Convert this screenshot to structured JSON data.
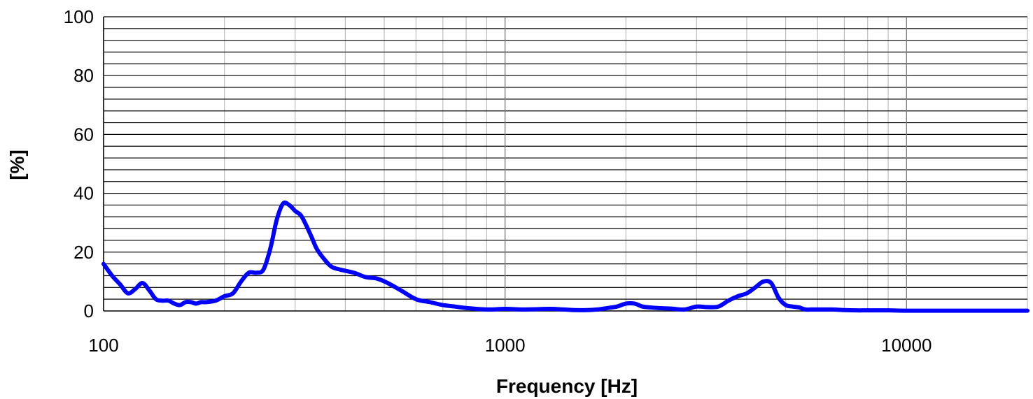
{
  "chart_data": {
    "type": "line",
    "xlabel": "Frequency [Hz]",
    "ylabel": "[%]",
    "xscale": "log",
    "xlim": [
      100,
      20000
    ],
    "ylim": [
      0,
      100
    ],
    "x_ticks": [
      100,
      1000,
      10000
    ],
    "x_tick_labels": [
      "100",
      "1000",
      "10000"
    ],
    "y_ticks": [
      0,
      20,
      40,
      60,
      80,
      100
    ],
    "y_tick_labels": [
      "0",
      "20",
      "40",
      "60",
      "80",
      "100"
    ],
    "y_minor_step": 4,
    "grid": true,
    "legend": "none",
    "series": [
      {
        "color": "#0000ff",
        "x": [
          100,
          105,
          110,
          115,
          120,
          125,
          130,
          135,
          140,
          145,
          150,
          155,
          160,
          165,
          170,
          175,
          180,
          190,
          200,
          210,
          220,
          230,
          240,
          250,
          260,
          270,
          280,
          290,
          300,
          310,
          320,
          330,
          340,
          355,
          370,
          390,
          420,
          450,
          480,
          510,
          550,
          600,
          650,
          700,
          750,
          800,
          900,
          1000,
          1100,
          1200,
          1300,
          1400,
          1500,
          1600,
          1700,
          1800,
          1900,
          2000,
          2100,
          2200,
          2300,
          2400,
          2500,
          2600,
          2800,
          3000,
          3200,
          3400,
          3600,
          3800,
          4000,
          4200,
          4400,
          4600,
          4800,
          5000,
          5200,
          5400,
          5600,
          5800,
          6000,
          6500,
          7000,
          7500,
          8000,
          9000,
          10000,
          12000,
          14000,
          16000,
          18000,
          20000
        ],
        "y": [
          16,
          12,
          9,
          6,
          7.5,
          9.5,
          7,
          4,
          3.5,
          3.5,
          2.5,
          2,
          3,
          3,
          2.5,
          3,
          3,
          3.5,
          5,
          6,
          10,
          13,
          13,
          14,
          21,
          31,
          36.5,
          36,
          34,
          32.5,
          29,
          25,
          21,
          17.5,
          15,
          14,
          13,
          11.5,
          11,
          9.5,
          7,
          4,
          3,
          2,
          1.5,
          1,
          0.5,
          0.7,
          0.5,
          0.6,
          0.7,
          0.5,
          0.3,
          0.3,
          0.5,
          1,
          1.5,
          2.5,
          2.5,
          1.5,
          1.2,
          1,
          0.9,
          0.8,
          0.5,
          1.5,
          1.3,
          1.5,
          3.5,
          5,
          6,
          8,
          10,
          9.5,
          4.5,
          2,
          1.5,
          1.2,
          0.5,
          0.5,
          0.5,
          0.5,
          0.3,
          0.2,
          0.2,
          0.2,
          0.1,
          0.1,
          0.1,
          0.1,
          0.1,
          0.1
        ]
      }
    ]
  }
}
